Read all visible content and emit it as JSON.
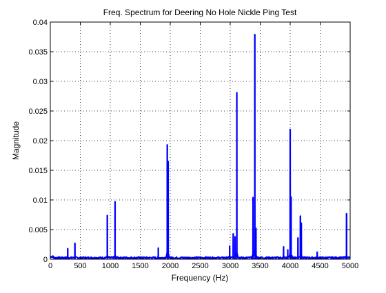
{
  "window": {
    "background": "#ffffff"
  },
  "chart_data": {
    "type": "line",
    "title": "Freq. Spectrum for Deering No Hole Nickle Ping Test",
    "xlabel": "Frequency (Hz)",
    "ylabel": "Magnitude",
    "xlim": [
      0,
      5000
    ],
    "ylim": [
      0,
      0.04
    ],
    "grid": true,
    "grid_style": "dotted",
    "x_ticks": [
      0,
      500,
      1000,
      1500,
      2000,
      2500,
      3000,
      3500,
      4000,
      4500,
      5000
    ],
    "x_tick_labels": [
      "0",
      "500",
      "1000",
      "1500",
      "2000",
      "2500",
      "3000",
      "3500",
      "4000",
      "4500",
      "5000"
    ],
    "y_ticks": [
      0,
      0.005,
      0.01,
      0.015,
      0.02,
      0.025,
      0.03,
      0.035,
      0.04
    ],
    "y_tick_labels": [
      "0",
      "0.005",
      "0.01",
      "0.015",
      "0.02",
      "0.025",
      "0.03",
      "0.035",
      "0.04"
    ],
    "series": [
      {
        "color": "#0000ff",
        "peaks": [
          {
            "x": 290,
            "y": 0.0018
          },
          {
            "x": 410,
            "y": 0.0027
          },
          {
            "x": 950,
            "y": 0.0074
          },
          {
            "x": 1080,
            "y": 0.0097
          },
          {
            "x": 1800,
            "y": 0.0019
          },
          {
            "x": 1950,
            "y": 0.0193
          },
          {
            "x": 1965,
            "y": 0.0165
          },
          {
            "x": 2990,
            "y": 0.0022
          },
          {
            "x": 3050,
            "y": 0.0043
          },
          {
            "x": 3080,
            "y": 0.0038
          },
          {
            "x": 3110,
            "y": 0.0281
          },
          {
            "x": 3380,
            "y": 0.0104
          },
          {
            "x": 3410,
            "y": 0.0379
          },
          {
            "x": 3430,
            "y": 0.0052
          },
          {
            "x": 3890,
            "y": 0.0021
          },
          {
            "x": 3960,
            "y": 0.0016
          },
          {
            "x": 4000,
            "y": 0.0219
          },
          {
            "x": 4015,
            "y": 0.0105
          },
          {
            "x": 4130,
            "y": 0.0036
          },
          {
            "x": 4170,
            "y": 0.0073
          },
          {
            "x": 4185,
            "y": 0.0061
          },
          {
            "x": 4450,
            "y": 0.0012
          },
          {
            "x": 4940,
            "y": 0.0077
          }
        ]
      }
    ]
  }
}
